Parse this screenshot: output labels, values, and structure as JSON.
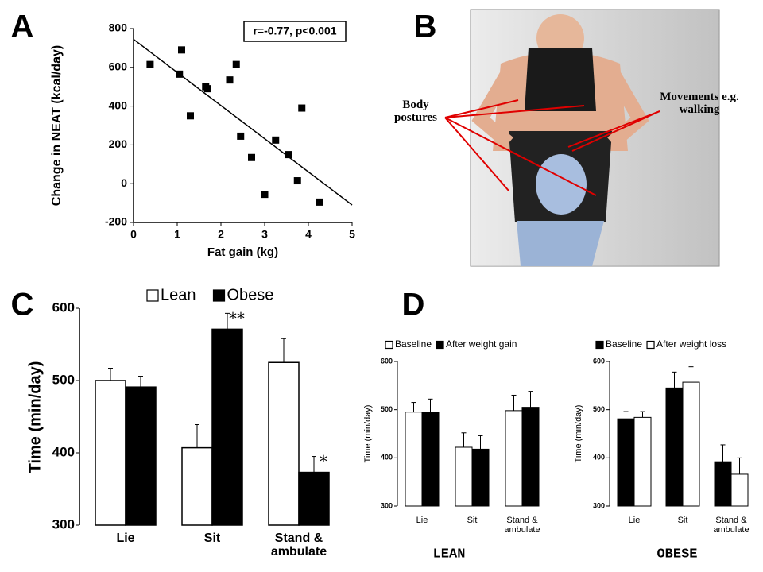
{
  "chart_data": [
    {
      "type": "scatter",
      "panel": "A",
      "xlabel": "Fat gain (kg)",
      "ylabel": "Change in NEAT (kcal/day)",
      "annotation": "r=-0.77, p<0.001",
      "x": [
        0.38,
        1.05,
        1.1,
        1.3,
        1.65,
        1.7,
        2.2,
        2.35,
        2.45,
        2.7,
        3.0,
        3.25,
        3.55,
        3.75,
        3.85,
        4.25
      ],
      "values": [
        615,
        565,
        690,
        350,
        500,
        490,
        535,
        615,
        245,
        135,
        -55,
        225,
        150,
        15,
        390,
        -95
      ],
      "color": "#000000",
      "trend": {
        "x": [
          0,
          5
        ],
        "y": [
          745,
          -110
        ]
      },
      "xlim": [
        0,
        5
      ],
      "xticks": [
        0,
        1,
        2,
        3,
        4,
        5
      ],
      "ylim": [
        -200,
        800
      ],
      "yticks": [
        -200,
        0,
        200,
        400,
        600,
        800
      ]
    },
    {
      "type": "bar",
      "panel": "C",
      "ylabel": "Time (min/day)",
      "categories": [
        "Lie",
        "Sit",
        "Stand & ambulate"
      ],
      "series": [
        {
          "name": "Lean",
          "color": "#ffffff",
          "values": [
            500,
            407,
            525
          ],
          "errors": [
            17,
            32,
            33
          ]
        },
        {
          "name": "Obese",
          "color": "#000000",
          "values": [
            491,
            571,
            373
          ],
          "errors": [
            15,
            22,
            22
          ]
        }
      ],
      "annotations": [
        "**",
        "*"
      ],
      "ylim": [
        300,
        600
      ],
      "yticks": [
        300,
        400,
        500,
        600
      ]
    },
    {
      "type": "bar",
      "panel": "D",
      "title": "LEAN",
      "ylabel": "Time (min/day)",
      "categories": [
        "Lie",
        "Sit",
        "Stand & ambulate"
      ],
      "series": [
        {
          "name": "Baseline",
          "color": "#ffffff",
          "values": [
            495,
            422,
            498
          ],
          "errors": [
            20,
            30,
            32
          ]
        },
        {
          "name": "After weight gain",
          "color": "#000000",
          "values": [
            494,
            418,
            505
          ],
          "errors": [
            28,
            28,
            33
          ]
        }
      ],
      "ylim": [
        300,
        600
      ],
      "yticks": [
        300,
        400,
        500,
        600
      ]
    },
    {
      "type": "bar",
      "title": "OBESE",
      "ylabel": "Time (min/day)",
      "categories": [
        "Lie",
        "Sit",
        "Stand & ambulate"
      ],
      "series": [
        {
          "name": "Baseline",
          "color": "#000000",
          "values": [
            481,
            545,
            392
          ],
          "errors": [
            15,
            33,
            35
          ]
        },
        {
          "name": "After weight loss",
          "color": "#ffffff",
          "values": [
            484,
            557,
            366
          ],
          "errors": [
            12,
            32,
            34
          ]
        }
      ],
      "ylim": [
        300,
        600
      ],
      "yticks": [
        300,
        400,
        500,
        600
      ]
    }
  ],
  "photo_panel": {
    "panel": "B",
    "labels": [
      "Body postures",
      "Movements e.g. walking"
    ]
  }
}
